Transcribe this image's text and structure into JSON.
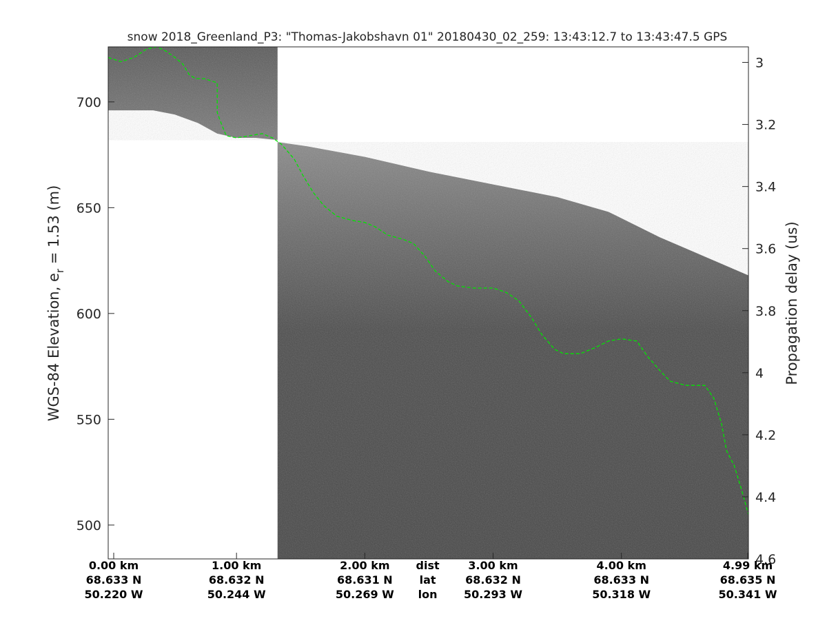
{
  "chart_data": {
    "type": "radar-echogram",
    "title": "snow 2018_Greenland_P3: \"Thomas-Jakobshavn 01\"  20180430_02_259: 13:43:12.7 to 13:43:47.5 GPS",
    "ylabel_main": "WGS-84 Elevation, e",
    "ylabel_sub": "r",
    "ylabel_rest": " = 1.53 (m)",
    "y2label": "Propagation delay (us)",
    "ylim": [
      484,
      726
    ],
    "yticks": [
      500,
      550,
      600,
      650,
      700
    ],
    "y2lim": [
      2.95,
      4.6
    ],
    "y2ticks": [
      "3",
      "3.2",
      "3.4",
      "3.6",
      "3.8",
      "4",
      "4.2",
      "4.4",
      "4.6"
    ],
    "xlim_km": [
      0,
      4.99
    ],
    "xticks": [
      {
        "km": 0.0,
        "dist": "0.00 km",
        "lat": "68.633 N",
        "lon": "50.220 W"
      },
      {
        "km": 1.0,
        "dist": "1.00 km",
        "lat": "68.632 N",
        "lon": "50.244 W"
      },
      {
        "km": 2.0,
        "dist": "2.00 km",
        "lat": "68.631 N",
        "lon": "50.269 W"
      },
      {
        "km": 3.0,
        "dist": "3.00 km",
        "lat": "68.632 N",
        "lon": "50.293 W"
      },
      {
        "km": 4.0,
        "dist": "4.00 km",
        "lat": "68.633 N",
        "lon": "50.318 W"
      },
      {
        "km": 4.99,
        "dist": "4.99 km",
        "lat": "68.635 N",
        "lon": "50.341 W"
      }
    ],
    "row_labels": {
      "dist": "dist",
      "lat": "lat",
      "lon": "lon"
    },
    "row_labels_km": 2.49,
    "segment1_km": [
      0.0,
      1.32
    ],
    "segment1_top_elev": 726,
    "segment1_floor": [
      [
        0.0,
        696
      ],
      [
        0.35,
        696
      ],
      [
        0.52,
        694
      ],
      [
        0.7,
        690
      ],
      [
        0.85,
        685
      ],
      [
        1.0,
        683
      ],
      [
        1.15,
        683
      ],
      [
        1.32,
        682
      ]
    ],
    "segment2_km": [
      1.32,
      4.99
    ],
    "segment2_bottom_elev": 484,
    "segment2_top": [
      [
        1.32,
        681
      ],
      [
        1.55,
        679
      ],
      [
        2.0,
        674
      ],
      [
        2.5,
        667
      ],
      [
        3.0,
        661
      ],
      [
        3.5,
        655
      ],
      [
        3.9,
        648
      ],
      [
        4.3,
        636
      ],
      [
        4.99,
        618
      ]
    ],
    "surface_line": {
      "color": "#00e600",
      "style": "dashed",
      "points": [
        [
          0.0,
          721
        ],
        [
          0.1,
          719
        ],
        [
          0.2,
          721
        ],
        [
          0.3,
          725
        ],
        [
          0.38,
          726
        ],
        [
          0.45,
          724
        ],
        [
          0.52,
          721
        ],
        [
          0.58,
          718
        ],
        [
          0.63,
          713
        ],
        [
          0.68,
          711
        ],
        [
          0.75,
          711
        ],
        [
          0.85,
          709
        ],
        [
          0.85,
          695
        ],
        [
          0.88,
          690
        ],
        [
          0.92,
          684
        ],
        [
          1.0,
          683
        ],
        [
          1.1,
          684
        ],
        [
          1.2,
          685
        ],
        [
          1.28,
          683
        ],
        [
          1.35,
          680
        ],
        [
          1.45,
          673
        ],
        [
          1.52,
          665
        ],
        [
          1.6,
          657
        ],
        [
          1.68,
          651
        ],
        [
          1.78,
          646
        ],
        [
          1.9,
          644
        ],
        [
          2.0,
          643
        ],
        [
          2.08,
          641
        ],
        [
          2.18,
          637
        ],
        [
          2.3,
          635
        ],
        [
          2.38,
          633
        ],
        [
          2.47,
          627
        ],
        [
          2.55,
          620
        ],
        [
          2.65,
          615
        ],
        [
          2.72,
          613
        ],
        [
          2.85,
          612
        ],
        [
          3.0,
          612
        ],
        [
          3.1,
          610
        ],
        [
          3.2,
          606
        ],
        [
          3.3,
          598
        ],
        [
          3.38,
          590
        ],
        [
          3.48,
          583
        ],
        [
          3.55,
          581
        ],
        [
          3.68,
          581
        ],
        [
          3.8,
          584
        ],
        [
          3.9,
          587
        ],
        [
          4.0,
          588
        ],
        [
          4.12,
          587
        ],
        [
          4.2,
          580
        ],
        [
          4.3,
          573
        ],
        [
          4.38,
          568
        ],
        [
          4.5,
          566
        ],
        [
          4.65,
          566
        ],
        [
          4.72,
          560
        ],
        [
          4.78,
          548
        ],
        [
          4.82,
          535
        ],
        [
          4.88,
          528
        ],
        [
          4.93,
          518
        ],
        [
          4.99,
          505
        ]
      ]
    }
  }
}
